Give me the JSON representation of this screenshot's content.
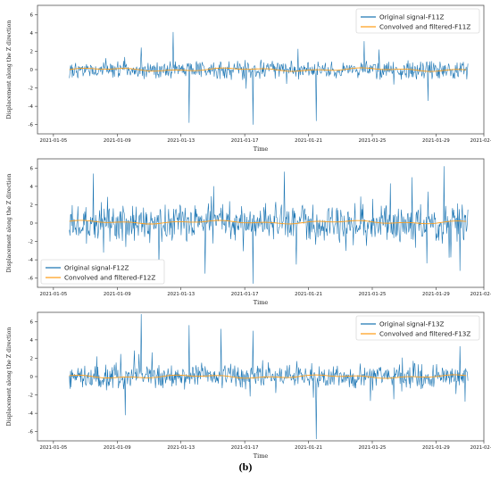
{
  "figure_caption": "(b)",
  "colors": {
    "original": "#1f77b4",
    "filtered": "#ff9f1c",
    "frame": "#555555"
  },
  "chart_data": [
    {
      "type": "line",
      "xlabel": "Time",
      "ylabel": "Displacement along the Z direction",
      "xlim": [
        "2021-01-04",
        "2021-02-01"
      ],
      "ylim": [
        -7,
        7
      ],
      "xticks": [
        "2021-01-05",
        "2021-01-09",
        "2021-01-13",
        "2021-01-17",
        "2021-01-21",
        "2021-01-25",
        "2021-01-29",
        "2021-02-01"
      ],
      "yticks": [
        -6,
        -4,
        -2,
        0,
        2,
        4,
        6
      ],
      "legend_position": "top-right",
      "series": [
        {
          "name": "Original signal-F11Z",
          "x_start": "2021-01-06",
          "x_end": "2021-01-31",
          "y_min": -6.0,
          "y_max": 6.8,
          "typical_amplitude": 1.0,
          "seed": 11,
          "spikes": [
            [
              "2021-01-13",
              6.8
            ],
            [
              "2021-01-13",
              -5.8
            ],
            [
              "2021-01-12",
              4.1
            ],
            [
              "2021-01-17",
              -6.0
            ],
            [
              "2021-01-21",
              -5.6
            ],
            [
              "2021-01-28",
              -3.4
            ],
            [
              "2021-01-10",
              2.4
            ],
            [
              "2021-01-24",
              3.1
            ]
          ]
        },
        {
          "name": "Convolved and filtered-F11Z",
          "smooth_of": 0,
          "level": 0.0
        }
      ]
    },
    {
      "type": "line",
      "xlabel": "Time",
      "ylabel": "Displacement along the Z direction",
      "xlim": [
        "2021-01-04",
        "2021-02-01"
      ],
      "ylim": [
        -7,
        7
      ],
      "xticks": [
        "2021-01-05",
        "2021-01-09",
        "2021-01-13",
        "2021-01-17",
        "2021-01-21",
        "2021-01-25",
        "2021-01-29",
        "2021-02-01"
      ],
      "yticks": [
        -6,
        -4,
        -2,
        0,
        2,
        4,
        6
      ],
      "legend_position": "bottom-left",
      "series": [
        {
          "name": "Original signal-F12Z",
          "x_start": "2021-01-06",
          "x_end": "2021-01-31",
          "y_min": -6.6,
          "y_max": 6.5,
          "typical_amplitude": 2.0,
          "seed": 12,
          "spikes": [
            [
              "2021-01-14",
              6.5
            ],
            [
              "2021-01-14",
              -5.5
            ],
            [
              "2021-01-17",
              -6.6
            ],
            [
              "2021-01-29",
              6.2
            ],
            [
              "2021-01-07",
              5.4
            ],
            [
              "2021-01-30",
              -5.2
            ],
            [
              "2021-01-19",
              5.6
            ],
            [
              "2021-01-27",
              5.0
            ]
          ]
        },
        {
          "name": "Convolved and filtered-F12Z",
          "smooth_of": 0,
          "level": 0.1
        }
      ]
    },
    {
      "type": "line",
      "xlabel": "Time",
      "ylabel": "Displacement along the Z direction",
      "xlim": [
        "2021-01-04",
        "2021-02-01"
      ],
      "ylim": [
        -7,
        7
      ],
      "xticks": [
        "2021-01-05",
        "2021-01-09",
        "2021-01-13",
        "2021-01-17",
        "2021-01-21",
        "2021-01-25",
        "2021-01-29",
        "2021-02-01"
      ],
      "yticks": [
        -6,
        -4,
        -2,
        0,
        2,
        4,
        6
      ],
      "legend_position": "top-right",
      "series": [
        {
          "name": "Original signal-F13Z",
          "x_start": "2021-01-06",
          "x_end": "2021-01-31",
          "y_min": -6.8,
          "y_max": 6.8,
          "typical_amplitude": 1.3,
          "seed": 13,
          "spikes": [
            [
              "2021-01-10",
              6.8
            ],
            [
              "2021-01-13",
              -6.7
            ],
            [
              "2021-01-21",
              -6.8
            ],
            [
              "2021-01-13",
              5.6
            ],
            [
              "2021-01-15",
              5.2
            ],
            [
              "2021-01-17",
              5.0
            ],
            [
              "2021-01-09",
              -4.2
            ],
            [
              "2021-01-30",
              3.3
            ]
          ]
        },
        {
          "name": "Convolved and filtered-F13Z",
          "smooth_of": 0,
          "level": 0.0
        }
      ]
    }
  ]
}
